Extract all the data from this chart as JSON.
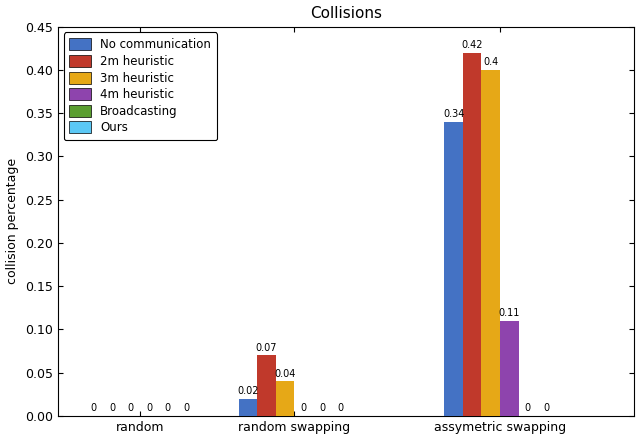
{
  "title": "Collisions",
  "ylabel": "collision percentage",
  "categories": [
    "random",
    "random swapping",
    "assymetric swapping"
  ],
  "series_labels": [
    "No communication",
    "2m heuristic",
    "3m heuristic",
    "4m heuristic",
    "Broadcasting",
    "Ours"
  ],
  "colors": [
    "#4472c4",
    "#c0392b",
    "#e6a817",
    "#8e44ad",
    "#5a9e2f",
    "#5bc8f5"
  ],
  "values": [
    [
      0,
      0,
      0,
      0,
      0,
      0
    ],
    [
      0.02,
      0.07,
      0.04,
      0,
      0,
      0
    ],
    [
      0.34,
      0.42,
      0.4,
      0.11,
      0,
      0
    ]
  ],
  "ylim": [
    0,
    0.45
  ],
  "yticks": [
    0,
    0.05,
    0.1,
    0.15,
    0.2,
    0.25,
    0.3,
    0.35,
    0.4,
    0.45
  ],
  "bar_width": 0.09,
  "group_positions": [
    0.35,
    1.1,
    2.1
  ]
}
